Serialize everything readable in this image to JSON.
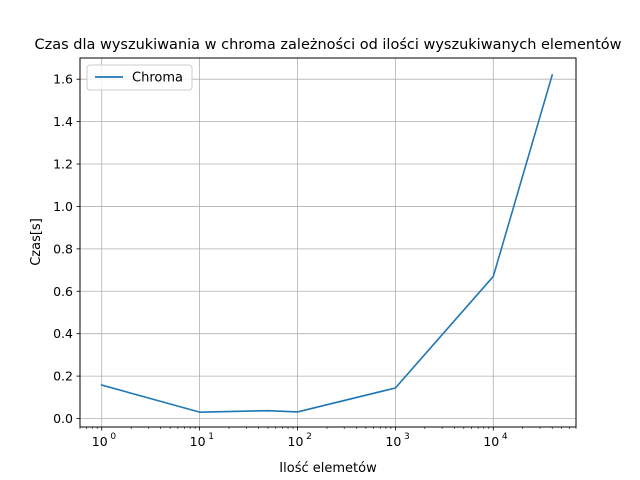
{
  "chart_data": {
    "type": "line",
    "title": "Czas dla wyszukiwania w chroma zależności od ilości wyszukiwanych elementów",
    "xlabel": "Ilość elemetów",
    "ylabel": "Czas[s]",
    "x_scale": "log",
    "xlim": [
      0.6,
      70000
    ],
    "ylim": [
      -0.04,
      1.7
    ],
    "grid": true,
    "legend_position": "top-left",
    "x_ticks": [
      {
        "value": 1,
        "base": "10",
        "exp": "0"
      },
      {
        "value": 10,
        "base": "10",
        "exp": "1"
      },
      {
        "value": 100,
        "base": "10",
        "exp": "2"
      },
      {
        "value": 1000,
        "base": "10",
        "exp": "3"
      },
      {
        "value": 10000,
        "base": "10",
        "exp": "4"
      }
    ],
    "y_ticks": [
      0.0,
      0.2,
      0.4,
      0.6,
      0.8,
      1.0,
      1.2,
      1.4,
      1.6
    ],
    "series": [
      {
        "name": "Chroma",
        "color": "#1f77b4",
        "x": [
          1,
          10,
          50,
          100,
          1000,
          10000,
          40000
        ],
        "y": [
          0.158,
          0.03,
          0.037,
          0.031,
          0.144,
          0.67,
          1.62
        ]
      }
    ]
  }
}
